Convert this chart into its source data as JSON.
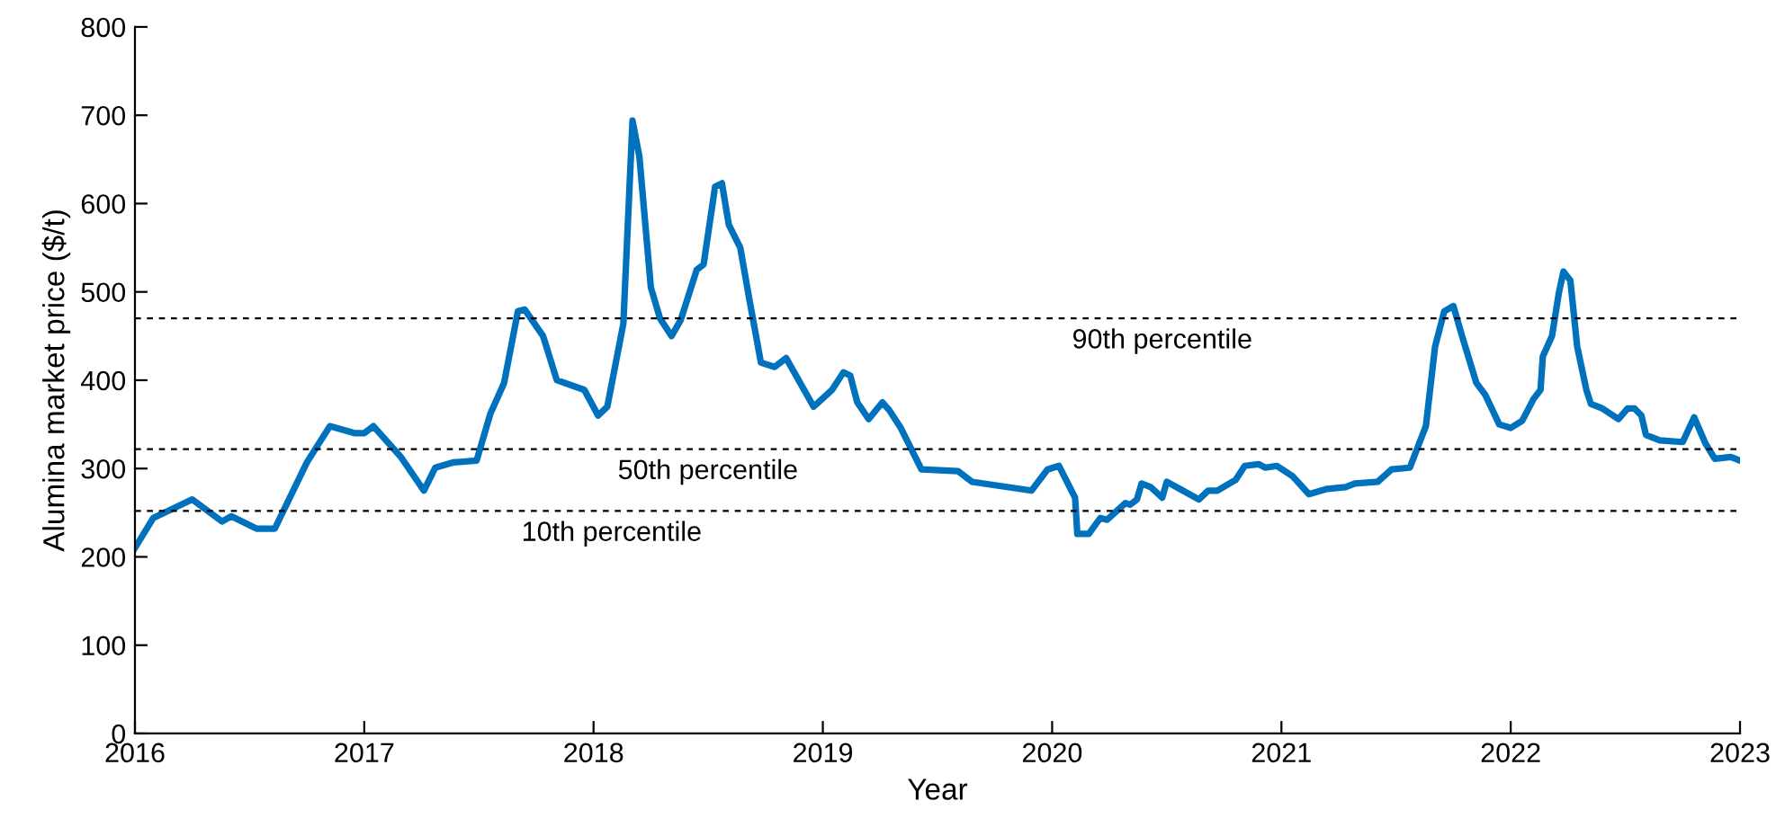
{
  "chart_data": {
    "type": "line",
    "xlabel": "Year",
    "ylabel": "Alumina market price ($/t)",
    "x": [
      2016.0,
      2016.08,
      2016.25,
      2016.38,
      2016.42,
      2016.53,
      2016.61,
      2016.75,
      2016.85,
      2016.96,
      2017.0,
      2017.04,
      2017.16,
      2017.26,
      2017.31,
      2017.39,
      2017.49,
      2017.55,
      2017.61,
      2017.67,
      2017.7,
      2017.78,
      2017.84,
      2017.96,
      2018.02,
      2018.06,
      2018.13,
      2018.17,
      2018.2,
      2018.25,
      2018.29,
      2018.34,
      2018.38,
      2018.45,
      2018.48,
      2018.53,
      2018.56,
      2018.59,
      2018.64,
      2018.68,
      2018.73,
      2018.79,
      2018.84,
      2018.96,
      2019.04,
      2019.09,
      2019.12,
      2019.15,
      2019.2,
      2019.26,
      2019.29,
      2019.34,
      2019.43,
      2019.59,
      2019.65,
      2019.91,
      2019.98,
      2020.03,
      2020.1,
      2020.11,
      2020.16,
      2020.21,
      2020.24,
      2020.32,
      2020.34,
      2020.37,
      2020.39,
      2020.43,
      2020.48,
      2020.5,
      2020.57,
      2020.64,
      2020.68,
      2020.72,
      2020.8,
      2020.84,
      2020.9,
      2020.93,
      2020.98,
      2021.05,
      2021.12,
      2021.2,
      2021.28,
      2021.32,
      2021.42,
      2021.48,
      2021.56,
      2021.63,
      2021.67,
      2021.71,
      2021.75,
      2021.79,
      2021.85,
      2021.89,
      2021.95,
      2022.0,
      2022.05,
      2022.1,
      2022.13,
      2022.14,
      2022.18,
      2022.21,
      2022.23,
      2022.26,
      2022.29,
      2022.33,
      2022.35,
      2022.4,
      2022.47,
      2022.51,
      2022.54,
      2022.57,
      2022.59,
      2022.65,
      2022.75,
      2022.8,
      2022.85,
      2022.89,
      2022.96,
      2023.0
    ],
    "series": [
      {
        "color": "#0072bd",
        "values": [
          210,
          244,
          265,
          240,
          246,
          232,
          232,
          307,
          348,
          340,
          340,
          348,
          313,
          275,
          301,
          307,
          309,
          362,
          397,
          478,
          480,
          450,
          400,
          389,
          360,
          370,
          464,
          694,
          653,
          505,
          470,
          450,
          468,
          525,
          531,
          619,
          623,
          576,
          550,
          491,
          420,
          415,
          425,
          370,
          389,
          409,
          405,
          375,
          356,
          375,
          366,
          346,
          299,
          297,
          285,
          275,
          299,
          303,
          267,
          226,
          226,
          244,
          242,
          261,
          259,
          265,
          283,
          279,
          267,
          285,
          275,
          265,
          275,
          275,
          287,
          303,
          305,
          301,
          303,
          291,
          271,
          277,
          279,
          283,
          285,
          299,
          301,
          348,
          438,
          478,
          484,
          448,
          397,
          383,
          350,
          346,
          354,
          379,
          389,
          427,
          450,
          499,
          523,
          513,
          438,
          389,
          373,
          368,
          356,
          368,
          368,
          360,
          338,
          332,
          330,
          358,
          328,
          311,
          313,
          309
        ]
      }
    ],
    "xlim": [
      2016,
      2023
    ],
    "xticks": [
      2016,
      2017,
      2018,
      2019,
      2020,
      2021,
      2022,
      2023
    ],
    "ylim": [
      0,
      800
    ],
    "yticks": [
      0,
      100,
      200,
      300,
      400,
      500,
      600,
      700,
      800
    ],
    "grid": false,
    "line_style": "solid",
    "marker": "none",
    "ref_lines": [
      {
        "axis": "y",
        "value": 470,
        "label": "90th percentile",
        "color": "#000000",
        "line_style": "dashed"
      },
      {
        "axis": "y",
        "value": 322,
        "label": "50th percentile",
        "color": "#000000",
        "line_style": "dashed"
      },
      {
        "axis": "y",
        "value": 252,
        "label": "10th percentile",
        "color": "#000000",
        "line_style": "dashed"
      }
    ]
  }
}
